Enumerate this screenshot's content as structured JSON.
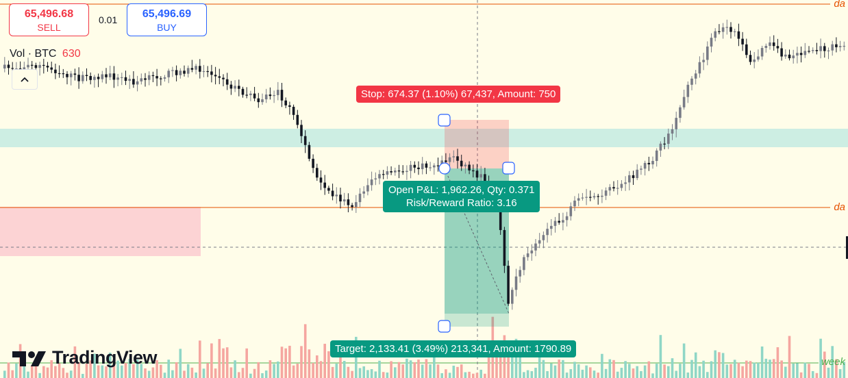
{
  "order_panel": {
    "sell": {
      "price": "65,496.68",
      "label": "SELL"
    },
    "spread": "0.01",
    "buy": {
      "price": "65,496.69",
      "label": "BUY"
    }
  },
  "volume_legend": {
    "label": "Vol · BTC",
    "value": "630"
  },
  "collapse_icon": "chevron-up",
  "position_tool": {
    "stop_label": "Stop: 674.37 (1.10%) 67,437, Amount: 750",
    "pnl_line1": "Open P&L: 1,962.26, Qty: 0.371",
    "pnl_line2": "Risk/Reward Ratio: 3.16",
    "target_label": "Target: 2,133.41 (3.49%) 213,341, Amount: 1790.89"
  },
  "right_labels": {
    "top": "da",
    "middle": "da",
    "bottom": "week"
  },
  "logo": {
    "text": "TradingView"
  },
  "colors": {
    "background": "#fffde9",
    "up": "#787b86",
    "down": "#131722",
    "sell": "#f23645",
    "buy": "#2962ff",
    "profit_zone": "#089981",
    "stop_zone": "#f23645",
    "daily_line": "#e65100",
    "weekly_line": "#4caf50",
    "cyan_zone": "#b2ebf2",
    "red_zone": "#ffcdd2"
  }
}
